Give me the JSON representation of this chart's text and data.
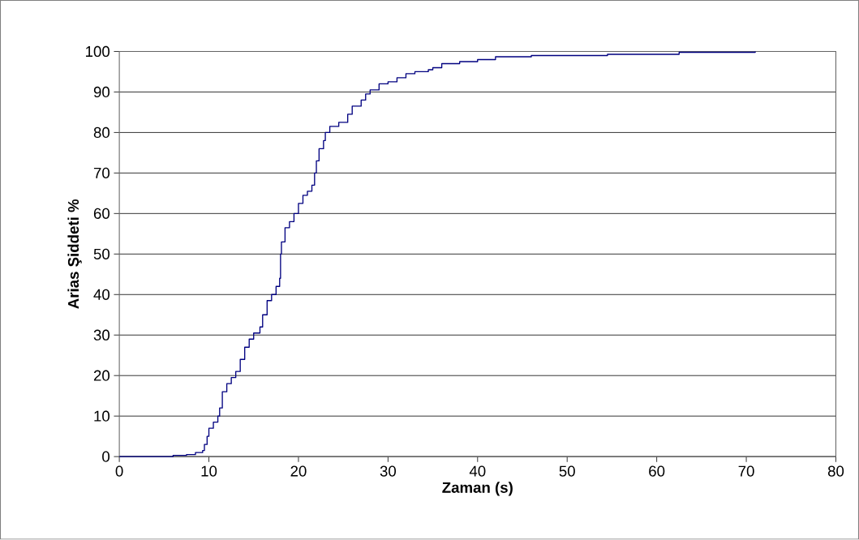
{
  "chart_data": {
    "type": "step",
    "xlabel": "Zaman (s)",
    "ylabel": "Arias Şiddeti %",
    "x": [
      0,
      5.5,
      6,
      7.5,
      8.5,
      9.3,
      9.5,
      9.8,
      10,
      10.5,
      11,
      11.2,
      11.5,
      12,
      12.5,
      13,
      13.5,
      14,
      14.5,
      15,
      15.7,
      16,
      16.5,
      17,
      17.5,
      17.9,
      18,
      18.1,
      18.5,
      19,
      19.5,
      20,
      20.5,
      21,
      21.5,
      21.8,
      22,
      22.3,
      22.8,
      23,
      23.5,
      24.5,
      25.5,
      26,
      27,
      27.5,
      28,
      29,
      30,
      31,
      32,
      33,
      34.5,
      35,
      36,
      38,
      40,
      42,
      46,
      54.5,
      62.5,
      71
    ],
    "values": [
      0,
      0,
      0.3,
      0.5,
      1,
      1.5,
      3,
      5,
      7,
      8.5,
      10,
      12,
      16,
      18,
      19.5,
      21,
      24,
      27,
      29,
      30.5,
      32,
      35,
      38.5,
      40,
      42,
      44,
      50,
      53,
      56.5,
      58,
      60,
      62.5,
      64.5,
      65.5,
      67,
      70,
      73,
      76,
      78,
      80,
      81.5,
      82.5,
      84.5,
      86.5,
      88,
      89.5,
      90.5,
      92,
      92.5,
      93.5,
      94.5,
      95,
      95.5,
      96,
      97,
      97.5,
      98,
      98.7,
      99,
      99.3,
      99.8,
      100
    ],
    "color": "#000080",
    "xlim": [
      0,
      80
    ],
    "ylim": [
      0,
      100
    ],
    "xticks": [
      0,
      10,
      20,
      30,
      40,
      50,
      60,
      70,
      80
    ],
    "yticks": [
      0,
      10,
      20,
      30,
      40,
      50,
      60,
      70,
      80,
      90,
      100
    ],
    "grid": "y"
  }
}
